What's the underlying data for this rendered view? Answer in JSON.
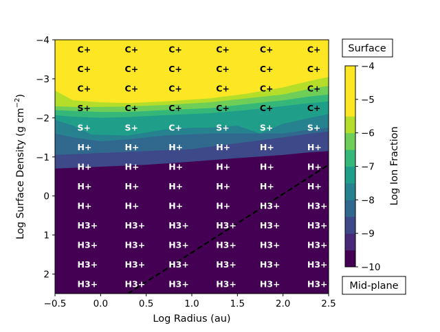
{
  "chart_data": {
    "type": "heatmap",
    "xlabel": "Log Radius (au)",
    "ylabel": "Log Surface Density (g cm$^{-2}$)",
    "xlim": [
      -0.5,
      2.5
    ],
    "ylim": [
      2.5,
      -4
    ],
    "x_ticks": [
      "−0.5",
      "0.0",
      "0.5",
      "1.0",
      "1.5",
      "2.0",
      "2.5"
    ],
    "y_ticks": [
      "−4",
      "−3",
      "−2",
      "−1",
      "0",
      "1",
      "2"
    ],
    "colorbar": {
      "label": "Log Ion Fraction",
      "ticks": [
        "−4",
        "−5",
        "−6",
        "−7",
        "−8",
        "−9",
        "−10"
      ],
      "levels": [
        -10,
        -9.5,
        -9,
        -8.5,
        -8,
        -7.5,
        -7,
        -6.5,
        -6,
        -5.5,
        -5,
        -4.5,
        -4
      ],
      "top_label": "Surface",
      "bottom_label": "Mid-plane"
    },
    "grid_x": [
      -0.33,
      0.19,
      0.67,
      1.19,
      1.67,
      2.19
    ],
    "grid_y": [
      -3.75,
      -3.25,
      -2.75,
      -2.25,
      -1.75,
      -1.25,
      -0.75,
      -0.25,
      0.25,
      0.75,
      1.25,
      1.75,
      2.25
    ],
    "labels": [
      [
        "C+",
        "C+",
        "C+",
        "C+",
        "C+",
        "C+"
      ],
      [
        "C+",
        "C+",
        "C+",
        "C+",
        "C+",
        "C+"
      ],
      [
        "C+",
        "C+",
        "C+",
        "C+",
        "C+",
        "C+"
      ],
      [
        "S+",
        "C+",
        "C+",
        "C+",
        "C+",
        "C+"
      ],
      [
        "S+",
        "S+",
        "C+",
        "S+",
        "S+",
        "S+"
      ],
      [
        "H+",
        "H+",
        "H+",
        "H+",
        "H+",
        "H+"
      ],
      [
        "H+",
        "H+",
        "H+",
        "H+",
        "H+",
        "H+"
      ],
      [
        "H+",
        "H+",
        "H+",
        "H+",
        "H+",
        "H+"
      ],
      [
        "H+",
        "H+",
        "H+",
        "H+",
        "H3+",
        "H3+"
      ],
      [
        "H3+",
        "H3+",
        "H3+",
        "H3+",
        "H3+",
        "H3+"
      ],
      [
        "H3+",
        "H3+",
        "H3+",
        "H3+",
        "H3+",
        "H3+"
      ],
      [
        "H3+",
        "H3+",
        "H3+",
        "H3+",
        "H3+",
        "H3+"
      ],
      [
        "H3+",
        "H3+",
        "H3+",
        "H3+",
        "H3+",
        "H3+"
      ]
    ],
    "dashed_line": {
      "x": [
        0.3,
        2.5
      ],
      "y": [
        2.5,
        -0.8
      ]
    },
    "bands": [
      {
        "color": "#fde725",
        "boundary_y": [
          [
            -0.5,
            -3.15
          ],
          [
            -0.4,
            -3.1
          ],
          [
            -0.3,
            -2.75
          ],
          [
            -0.1,
            -2.57
          ],
          [
            0.3,
            -2.5
          ],
          [
            0.7,
            -2.5
          ],
          [
            1.2,
            -2.6
          ],
          [
            1.6,
            -2.75
          ],
          [
            2.0,
            -2.95
          ],
          [
            2.3,
            -3.2
          ],
          [
            2.5,
            -3.3
          ]
        ]
      },
      {
        "color": "#b5de2b",
        "boundary_y": [
          [
            -0.5,
            -2.7
          ],
          [
            -0.3,
            -2.45
          ],
          [
            0.0,
            -2.4
          ],
          [
            0.3,
            -2.38
          ],
          [
            0.7,
            -2.42
          ],
          [
            1.2,
            -2.5
          ],
          [
            1.6,
            -2.62
          ],
          [
            2.0,
            -2.78
          ],
          [
            2.3,
            -2.95
          ],
          [
            2.5,
            -3.05
          ]
        ]
      },
      {
        "color": "#6ece58",
        "boundary_y": [
          [
            -0.5,
            -2.3
          ],
          [
            -0.3,
            -2.28
          ],
          [
            0.0,
            -2.28
          ],
          [
            0.3,
            -2.29
          ],
          [
            0.7,
            -2.33
          ],
          [
            1.2,
            -2.4
          ],
          [
            1.6,
            -2.5
          ],
          [
            2.0,
            -2.6
          ],
          [
            2.3,
            -2.75
          ],
          [
            2.5,
            -2.82
          ]
        ]
      },
      {
        "color": "#35b779",
        "boundary_y": [
          [
            -0.5,
            -2.2
          ],
          [
            -0.3,
            -2.18
          ],
          [
            0.0,
            -2.15
          ],
          [
            0.3,
            -2.15
          ],
          [
            0.7,
            -2.2
          ],
          [
            1.2,
            -2.25
          ],
          [
            1.6,
            -2.35
          ],
          [
            2.0,
            -2.45
          ],
          [
            2.3,
            -2.55
          ],
          [
            2.5,
            -2.6
          ]
        ]
      },
      {
        "color": "#1f9e89",
        "boundary_y": [
          [
            -0.5,
            -2.07
          ],
          [
            -0.3,
            -2.03
          ],
          [
            0.0,
            -2.0
          ],
          [
            0.3,
            -2.02
          ],
          [
            0.7,
            -2.07
          ],
          [
            1.2,
            -2.12
          ],
          [
            1.6,
            -2.2
          ],
          [
            2.0,
            -2.3
          ],
          [
            2.3,
            -2.38
          ],
          [
            2.5,
            -2.42
          ]
        ]
      },
      {
        "color": "#26828e",
        "boundary_y": [
          [
            -0.5,
            -1.95
          ],
          [
            -0.3,
            -1.8
          ],
          [
            -0.1,
            -1.57
          ],
          [
            0.3,
            -1.55
          ],
          [
            0.7,
            -1.7
          ],
          [
            1.0,
            -1.75
          ],
          [
            1.2,
            -1.75
          ],
          [
            1.5,
            -1.8
          ],
          [
            1.75,
            -1.6
          ],
          [
            2.0,
            -1.85
          ],
          [
            2.3,
            -2.0
          ],
          [
            2.5,
            -2.1
          ]
        ]
      },
      {
        "color": "#31688e",
        "boundary_y": [
          [
            -0.5,
            -1.6
          ],
          [
            -0.3,
            -1.5
          ],
          [
            0.0,
            -1.4
          ],
          [
            0.3,
            -1.45
          ],
          [
            0.7,
            -1.55
          ],
          [
            1.2,
            -1.6
          ],
          [
            1.6,
            -1.6
          ],
          [
            2.0,
            -1.6
          ],
          [
            2.3,
            -1.7
          ],
          [
            2.5,
            -1.75
          ]
        ]
      },
      {
        "color": "#3e4989",
        "boundary_y": [
          [
            -0.5,
            -1.05
          ],
          [
            0.0,
            -1.1
          ],
          [
            0.5,
            -1.15
          ],
          [
            1.0,
            -1.2
          ],
          [
            1.5,
            -1.35
          ],
          [
            2.0,
            -1.5
          ],
          [
            2.3,
            -1.6
          ],
          [
            2.5,
            -1.65
          ]
        ]
      },
      {
        "color": "#482878",
        "boundary_y": [
          [
            -0.5,
            -0.7
          ],
          [
            0.0,
            -0.75
          ],
          [
            0.5,
            -0.8
          ],
          [
            1.0,
            -0.88
          ],
          [
            1.5,
            -0.97
          ],
          [
            2.0,
            -1.05
          ],
          [
            2.3,
            -1.12
          ],
          [
            2.5,
            -1.15
          ]
        ]
      },
      {
        "color": "#440154",
        "boundary_y": [
          [
            -0.5,
            -0.7
          ],
          [
            2.5,
            -1.15
          ]
        ]
      }
    ]
  }
}
